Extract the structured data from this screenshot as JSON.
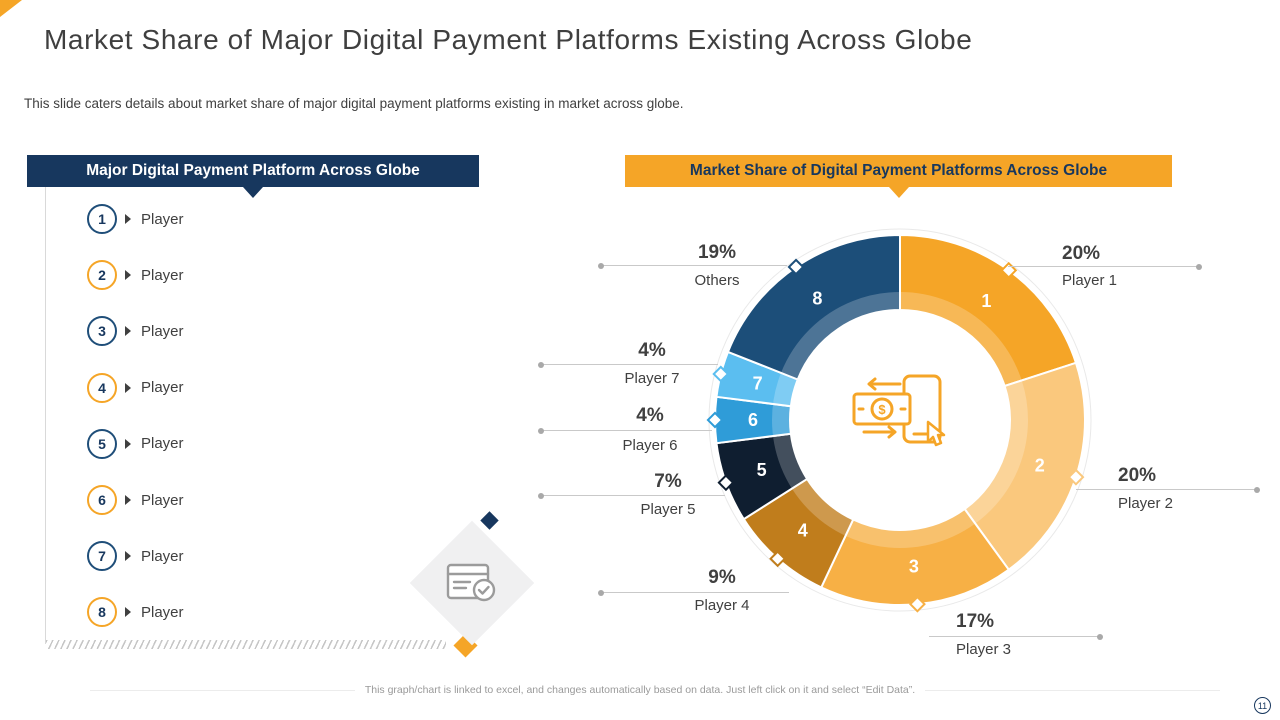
{
  "slide": {
    "title": "Market Share of Major Digital Payment Platforms Existing Across Globe",
    "subtitle": "This slide caters details about market share of major digital payment platforms existing in market across globe.",
    "footer": "This graph/chart is linked to excel, and changes automatically based on data. Just left click on it and select “Edit Data”.",
    "page_number": "11",
    "accent_orange": "#F5A527",
    "accent_navy": "#17375E"
  },
  "left_panel": {
    "header": "Major Digital Payment Platform Across Globe",
    "items": [
      {
        "number": "1",
        "label": "Player",
        "accent": "#1F4E79"
      },
      {
        "number": "2",
        "label": "Player",
        "accent": "#F5A527"
      },
      {
        "number": "3",
        "label": "Player",
        "accent": "#1F4E79"
      },
      {
        "number": "4",
        "label": "Player",
        "accent": "#F5A527"
      },
      {
        "number": "5",
        "label": "Player",
        "accent": "#1F4E79"
      },
      {
        "number": "6",
        "label": "Player",
        "accent": "#F5A527"
      },
      {
        "number": "7",
        "label": "Player",
        "accent": "#1F4E79"
      },
      {
        "number": "8",
        "label": "Player",
        "accent": "#F5A527"
      }
    ]
  },
  "chart_panel": {
    "header": "Market Share of Digital Payment Platforms Across Globe"
  },
  "chart_data": {
    "type": "pie",
    "subtype": "donut",
    "title": "Market Share of Digital Payment Platforms Across Globe",
    "unit": "%",
    "start_angle_deg": 0,
    "direction": "clockwise",
    "legend_position": "callout-labels",
    "series": [
      {
        "segment_number": "1",
        "name": "Player 1",
        "value": 20,
        "pct_label": "20%",
        "color": "#F5A527"
      },
      {
        "segment_number": "2",
        "name": "Player 2",
        "value": 20,
        "pct_label": "20%",
        "color": "#FAC87D"
      },
      {
        "segment_number": "3",
        "name": "Player 3",
        "value": 17,
        "pct_label": "17%",
        "color": "#F7B045"
      },
      {
        "segment_number": "4",
        "name": "Player 4",
        "value": 9,
        "pct_label": "9%",
        "color": "#C07D1C"
      },
      {
        "segment_number": "5",
        "name": "Player 5",
        "value": 7,
        "pct_label": "7%",
        "color": "#0F1E30"
      },
      {
        "segment_number": "6",
        "name": "Player 6",
        "value": 4,
        "pct_label": "4%",
        "color": "#2F9CD8"
      },
      {
        "segment_number": "7",
        "name": "Player 7",
        "value": 4,
        "pct_label": "4%",
        "color": "#5BBEF0"
      },
      {
        "segment_number": "8",
        "name": "Others",
        "value": 19,
        "pct_label": "19%",
        "color": "#1C4E79"
      }
    ]
  }
}
